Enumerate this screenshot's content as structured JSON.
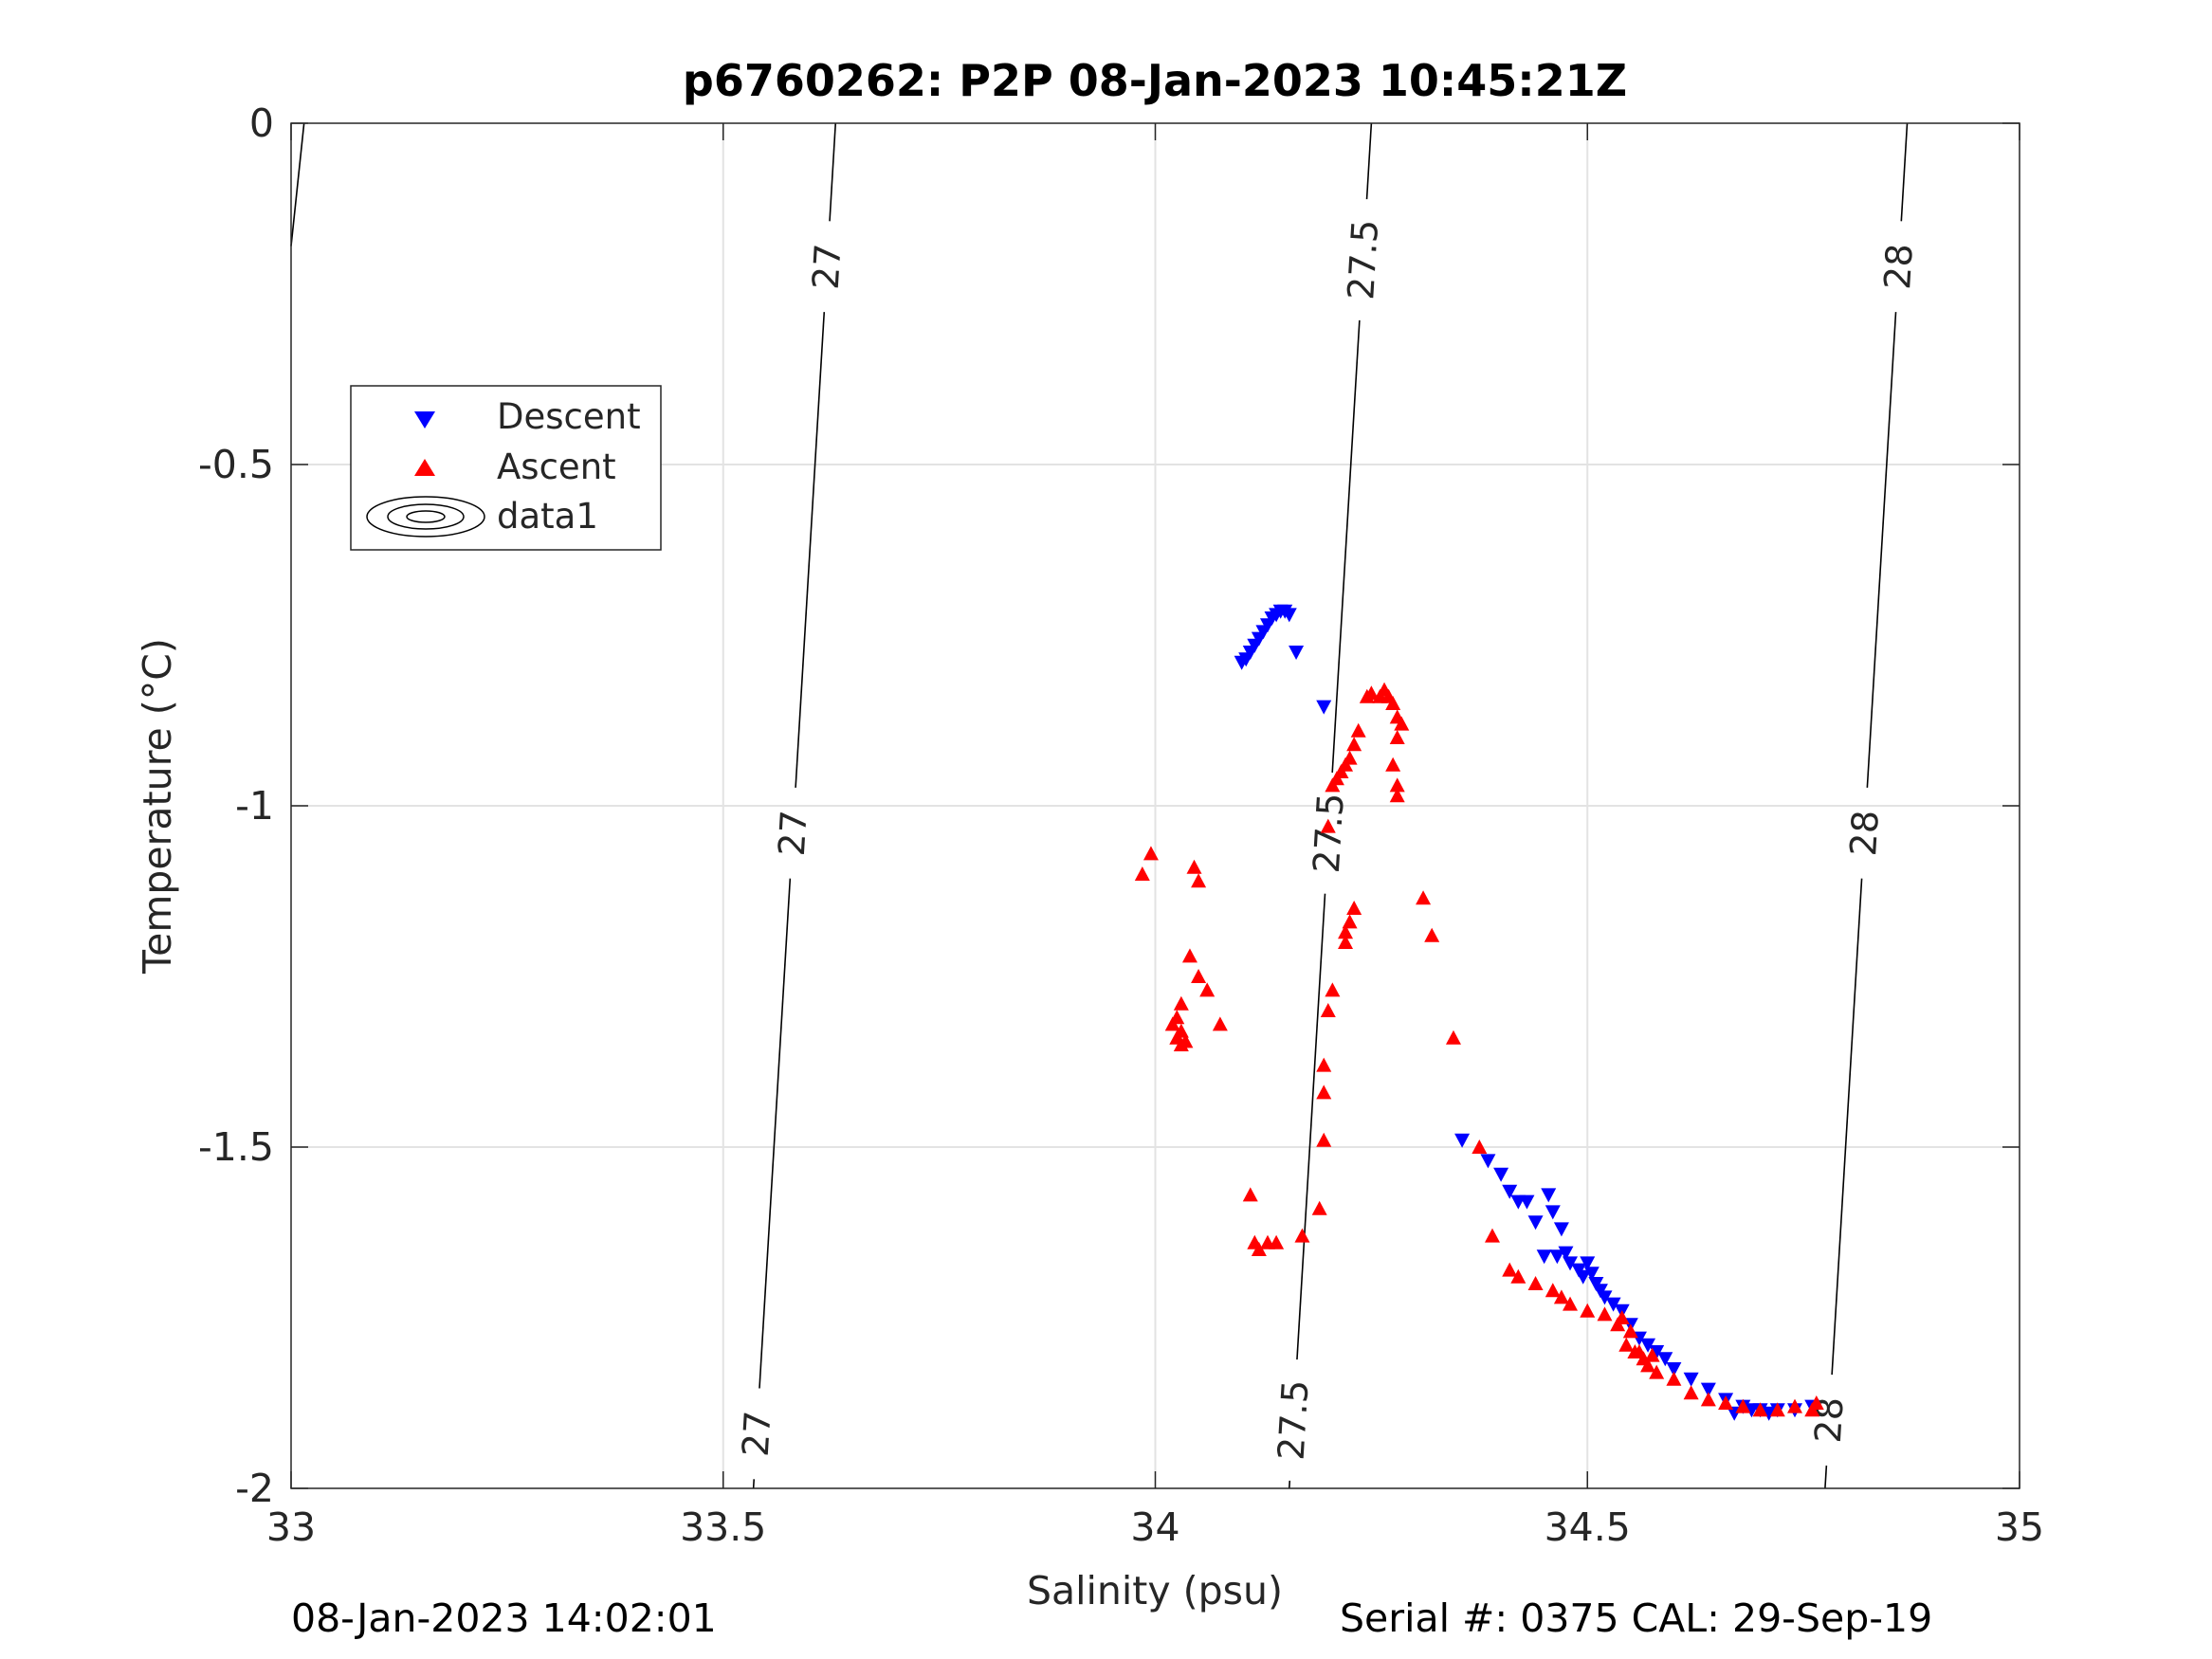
{
  "chart_data": {
    "type": "scatter",
    "title": "p6760262: P2P 08-Jan-2023 10:45:21Z",
    "xlabel": "Salinity (psu)",
    "ylabel": "Temperature (°C)",
    "xlim": [
      33,
      35
    ],
    "ylim": [
      -2,
      0
    ],
    "xticks": [
      "33",
      "33.5",
      "34",
      "34.5",
      "35"
    ],
    "yticks": [
      "0",
      "-0.5",
      "-1",
      "-1.5",
      "-2"
    ],
    "grid": true,
    "legend": {
      "position": "upper-left",
      "entries": [
        "Descent",
        "Ascent",
        "data1"
      ]
    },
    "contours": [
      {
        "level": "27",
        "points": [
          [
            33.63,
            0
          ],
          [
            33.535,
            -2
          ]
        ],
        "labels": [
          [
            33.62,
            -0.21
          ],
          [
            33.58,
            -1.04
          ],
          [
            33.54,
            -1.92
          ]
        ]
      },
      {
        "level": "27.5",
        "points": [
          [
            34.25,
            0
          ],
          [
            34.155,
            -2
          ]
        ],
        "labels": [
          [
            34.24,
            -0.2
          ],
          [
            34.195,
            -1.04
          ],
          [
            34.16,
            -1.9
          ]
        ]
      },
      {
        "level": "28",
        "points": [
          [
            34.87,
            0
          ],
          [
            34.775,
            -2
          ]
        ],
        "labels": [
          [
            34.86,
            -0.21
          ],
          [
            34.82,
            -1.04
          ],
          [
            34.78,
            -1.9
          ]
        ]
      },
      {
        "level": "",
        "points": [
          [
            33.015,
            0
          ],
          [
            33.0,
            -0.18
          ]
        ],
        "labels": []
      }
    ],
    "series": [
      {
        "name": "Descent",
        "color": "#0000ff",
        "marker": "triangle-down",
        "points": [
          [
            34.1,
            -0.79
          ],
          [
            34.105,
            -0.785
          ],
          [
            34.11,
            -0.775
          ],
          [
            34.115,
            -0.765
          ],
          [
            34.12,
            -0.755
          ],
          [
            34.125,
            -0.745
          ],
          [
            34.13,
            -0.735
          ],
          [
            34.135,
            -0.725
          ],
          [
            34.14,
            -0.72
          ],
          [
            34.145,
            -0.715
          ],
          [
            34.15,
            -0.715
          ],
          [
            34.155,
            -0.72
          ],
          [
            34.163,
            -0.775
          ],
          [
            34.195,
            -0.855
          ],
          [
            34.355,
            -1.49
          ],
          [
            34.385,
            -1.52
          ],
          [
            34.4,
            -1.54
          ],
          [
            34.41,
            -1.565
          ],
          [
            34.42,
            -1.58
          ],
          [
            34.43,
            -1.58
          ],
          [
            34.44,
            -1.61
          ],
          [
            34.455,
            -1.57
          ],
          [
            34.46,
            -1.595
          ],
          [
            34.47,
            -1.62
          ],
          [
            34.45,
            -1.66
          ],
          [
            34.465,
            -1.66
          ],
          [
            34.475,
            -1.655
          ],
          [
            34.48,
            -1.67
          ],
          [
            34.49,
            -1.68
          ],
          [
            34.495,
            -1.69
          ],
          [
            34.5,
            -1.67
          ],
          [
            34.505,
            -1.685
          ],
          [
            34.51,
            -1.7
          ],
          [
            34.515,
            -1.71
          ],
          [
            34.52,
            -1.72
          ],
          [
            34.53,
            -1.73
          ],
          [
            34.54,
            -1.74
          ],
          [
            34.55,
            -1.76
          ],
          [
            34.56,
            -1.78
          ],
          [
            34.57,
            -1.79
          ],
          [
            34.58,
            -1.8
          ],
          [
            34.59,
            -1.81
          ],
          [
            34.6,
            -1.825
          ],
          [
            34.62,
            -1.84
          ],
          [
            34.64,
            -1.855
          ],
          [
            34.66,
            -1.87
          ],
          [
            34.68,
            -1.88
          ],
          [
            34.7,
            -1.885
          ],
          [
            34.72,
            -1.885
          ],
          [
            34.74,
            -1.885
          ],
          [
            34.76,
            -1.88
          ],
          [
            34.67,
            -1.89
          ],
          [
            34.69,
            -1.885
          ],
          [
            34.71,
            -1.89
          ]
        ]
      },
      {
        "name": "Ascent",
        "color": "#ff0000",
        "marker": "triangle-up",
        "points": [
          [
            33.985,
            -1.1
          ],
          [
            33.995,
            -1.07
          ],
          [
            34.045,
            -1.09
          ],
          [
            34.05,
            -1.11
          ],
          [
            34.04,
            -1.22
          ],
          [
            34.05,
            -1.25
          ],
          [
            34.06,
            -1.27
          ],
          [
            34.075,
            -1.32
          ],
          [
            34.03,
            -1.29
          ],
          [
            34.025,
            -1.31
          ],
          [
            34.02,
            -1.32
          ],
          [
            34.03,
            -1.33
          ],
          [
            34.025,
            -1.34
          ],
          [
            34.03,
            -1.35
          ],
          [
            34.035,
            -1.345
          ],
          [
            34.11,
            -1.57
          ],
          [
            34.115,
            -1.64
          ],
          [
            34.12,
            -1.65
          ],
          [
            34.13,
            -1.64
          ],
          [
            34.14,
            -1.64
          ],
          [
            34.17,
            -1.63
          ],
          [
            34.19,
            -1.59
          ],
          [
            34.195,
            -1.49
          ],
          [
            34.195,
            -1.42
          ],
          [
            34.195,
            -1.38
          ],
          [
            34.2,
            -1.3
          ],
          [
            34.205,
            -1.27
          ],
          [
            34.22,
            -1.2
          ],
          [
            34.22,
            -1.185
          ],
          [
            34.225,
            -1.17
          ],
          [
            34.23,
            -1.15
          ],
          [
            34.2,
            -1.03
          ],
          [
            34.205,
            -0.97
          ],
          [
            34.21,
            -0.96
          ],
          [
            34.215,
            -0.95
          ],
          [
            34.22,
            -0.94
          ],
          [
            34.225,
            -0.93
          ],
          [
            34.23,
            -0.91
          ],
          [
            34.235,
            -0.89
          ],
          [
            34.245,
            -0.84
          ],
          [
            34.25,
            -0.835
          ],
          [
            34.26,
            -0.84
          ],
          [
            34.265,
            -0.83
          ],
          [
            34.27,
            -0.84
          ],
          [
            34.275,
            -0.85
          ],
          [
            34.28,
            -0.87
          ],
          [
            34.285,
            -0.88
          ],
          [
            34.28,
            -0.9
          ],
          [
            34.275,
            -0.94
          ],
          [
            34.28,
            -0.97
          ],
          [
            34.28,
            -0.985
          ],
          [
            34.31,
            -1.135
          ],
          [
            34.32,
            -1.19
          ],
          [
            34.345,
            -1.34
          ],
          [
            34.375,
            -1.5
          ],
          [
            34.39,
            -1.63
          ],
          [
            34.41,
            -1.68
          ],
          [
            34.42,
            -1.69
          ],
          [
            34.44,
            -1.7
          ],
          [
            34.46,
            -1.71
          ],
          [
            34.47,
            -1.72
          ],
          [
            34.48,
            -1.73
          ],
          [
            34.5,
            -1.74
          ],
          [
            34.52,
            -1.745
          ],
          [
            34.54,
            -1.75
          ],
          [
            34.55,
            -1.77
          ],
          [
            34.56,
            -1.8
          ],
          [
            34.57,
            -1.82
          ],
          [
            34.58,
            -1.83
          ],
          [
            34.6,
            -1.84
          ],
          [
            34.62,
            -1.86
          ],
          [
            34.64,
            -1.87
          ],
          [
            34.66,
            -1.875
          ],
          [
            34.68,
            -1.88
          ],
          [
            34.7,
            -1.885
          ],
          [
            34.72,
            -1.885
          ],
          [
            34.74,
            -1.88
          ],
          [
            34.76,
            -1.885
          ],
          [
            34.765,
            -1.875
          ],
          [
            34.555,
            -1.8
          ],
          [
            34.565,
            -1.81
          ],
          [
            34.575,
            -1.805
          ],
          [
            34.545,
            -1.79
          ],
          [
            34.535,
            -1.76
          ]
        ]
      }
    ]
  },
  "footer": {
    "timestamp": "08-Jan-2023 14:02:01",
    "serial": "Serial #: 0375  CAL: 29-Sep-19"
  }
}
